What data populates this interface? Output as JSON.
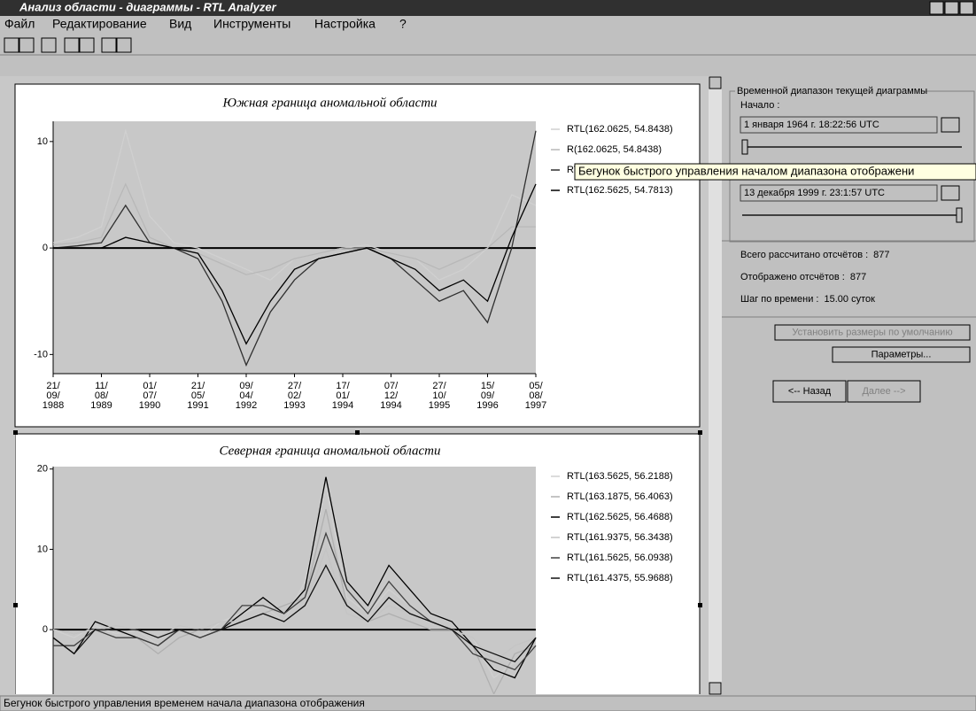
{
  "window": {
    "title": "Анализ области - диаграммы - RTL Analyzer"
  },
  "menu": [
    "Файл",
    "Редактирование",
    "Вид",
    "Инструменты",
    "Настройка",
    "?"
  ],
  "chart_data": [
    {
      "type": "line",
      "title": "Южная граница аномальной области",
      "categories": [
        "21/\n09/\n1988",
        null,
        "11/\n08/\n1989",
        null,
        "01/\n07/\n1990",
        null,
        "21/\n05/\n1991",
        null,
        "09/\n04/\n1992",
        null,
        "27/\n02/\n1993",
        null,
        "17/\n01/\n1994",
        null,
        "07/\n12/\n1994",
        null,
        "27/\n10/\n1995",
        null,
        "15/\n09/\n1996",
        null,
        "05/\n08/\n1997"
      ],
      "ylim": [
        -11.8,
        11.9
      ],
      "yticks": [
        -10,
        0,
        10
      ],
      "series": [
        {
          "name": "RTL(162.0625, 54.8438)",
          "color": "#d0d0d0",
          "values": [
            0.5,
            1,
            2,
            11,
            3,
            0.5,
            0,
            -1,
            -2,
            -3,
            -1,
            -0.5,
            0,
            0.3,
            -0.5,
            -1,
            -3,
            -2,
            0,
            5,
            4
          ]
        },
        {
          "name": "R(162.0625, 54.8438)",
          "color": "#b8b8b8",
          "values": [
            0.3,
            0.5,
            1,
            6,
            1,
            0,
            -0.5,
            -1.5,
            -2.5,
            -2,
            -1,
            -0.5,
            0,
            0,
            -0.5,
            -1,
            -2,
            -1,
            0,
            2,
            2
          ]
        },
        {
          "name": "RTL(163.",
          "color": "#303030",
          "values": [
            0,
            0.2,
            0.5,
            4,
            0.5,
            0,
            -1,
            -5,
            -11,
            -6,
            -3,
            -1,
            -0.5,
            0,
            -1,
            -3,
            -5,
            -4,
            -7,
            0,
            11
          ]
        },
        {
          "name": "RTL(162.5625, 54.7813)",
          "color": "#000000",
          "values": [
            0,
            0,
            0,
            1,
            0.5,
            0,
            -0.5,
            -4,
            -9,
            -5,
            -2,
            -1,
            -0.5,
            0,
            -1,
            -2,
            -4,
            -3,
            -5,
            1,
            6
          ]
        }
      ]
    },
    {
      "type": "line",
      "title": "Северная граница аномальной области",
      "categories": [
        null,
        null,
        null,
        null,
        null,
        null,
        null,
        null,
        null,
        null,
        null,
        null,
        null,
        null,
        null,
        null,
        null,
        null,
        null,
        null,
        null,
        null,
        null,
        null
      ],
      "ylim": [
        -8.7,
        20.3
      ],
      "yticks": [
        0,
        10,
        20
      ],
      "series": [
        {
          "name": "RTL(163.5625, 56.2188)",
          "color": "#d0d0d0",
          "values": [
            0,
            -1,
            0.5,
            -0.5,
            0,
            -2,
            0,
            -1,
            1,
            2,
            3,
            1,
            6,
            18,
            4,
            2,
            5,
            3,
            1,
            0,
            -1,
            -6,
            -4,
            -1
          ]
        },
        {
          "name": "RTL(163.1875, 56.4063)",
          "color": "#b0b0b0",
          "values": [
            0,
            -0.5,
            0,
            0,
            -1,
            -3,
            -1,
            0,
            0,
            1,
            2,
            3,
            4,
            15,
            3,
            1,
            2,
            1,
            0,
            0,
            -2,
            -8,
            -3,
            -2
          ]
        },
        {
          "name": "RTL(162.5625, 56.4688)",
          "color": "#000000",
          "values": [
            -1,
            -3,
            1,
            0,
            -1,
            -2,
            0,
            -1,
            0,
            2,
            4,
            2,
            5,
            19,
            6,
            3,
            8,
            5,
            2,
            1,
            -2,
            -5,
            -6,
            -1
          ]
        },
        {
          "name": "RTL(161.9375, 56.3438)",
          "color": "#c4c4c4",
          "values": [
            0,
            -0.5,
            0,
            0.5,
            0,
            -1,
            0.5,
            0,
            1,
            1,
            2,
            1,
            3,
            10,
            2,
            1,
            3,
            2,
            1,
            0,
            -1,
            -4,
            -2,
            -1
          ]
        },
        {
          "name": "RTL(161.5625, 56.0938)",
          "color": "#404040",
          "values": [
            -2,
            -2,
            0,
            -1,
            -1,
            -2,
            0,
            -1,
            0,
            3,
            3,
            2,
            4,
            12,
            5,
            2,
            6,
            3,
            1,
            0,
            -3,
            -4,
            -5,
            -2
          ]
        },
        {
          "name": "RTL(161.4375, 55.9688)",
          "color": "#101010",
          "values": [
            -1,
            -3,
            0,
            0,
            0,
            -1,
            0,
            0,
            0,
            1,
            2,
            1,
            3,
            8,
            3,
            1,
            4,
            2,
            1,
            0,
            -2,
            -3,
            -4,
            -1
          ]
        }
      ]
    }
  ],
  "panel": {
    "group_title": "Временной диапазон текущей диаграммы",
    "start_label": "Начало :",
    "start_value": "1 января 1964 г.  18:22:56 UTC",
    "end_value": "13 декабря 1999 г.  23:1:57 UTC",
    "stats": [
      {
        "label": "Всего рассчитано отсчётов :",
        "value": 877
      },
      {
        "label": "Отображено отсчётов :",
        "value": 877
      },
      {
        "label": "Шаг по времени :",
        "value": "15.00 суток"
      }
    ],
    "buttons": [
      "Установить размеры по умолчанию",
      "Параметры...",
      "<-- Назад",
      "Далее -->"
    ]
  },
  "tooltip": "Бегунок быстрого управления началом диапазона отображени",
  "status": "Бегунок быстрого управления временем начала диапазона отображения"
}
